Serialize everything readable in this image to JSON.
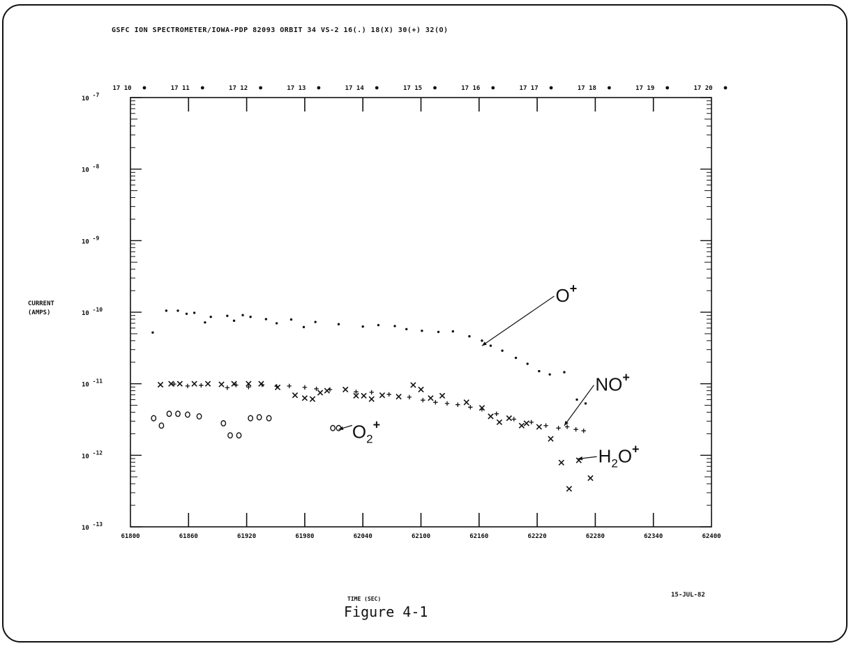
{
  "figure": {
    "header": "GSFC ION SPECTROMETER/IOWA-PDP  82093 ORBIT 34 VS-2  16(.) 18(X) 30(+) 32(O)",
    "ylabel_line1": "CURRENT",
    "ylabel_line2": "(AMPS)",
    "xlabel": "TIME (SEC)",
    "date": "15-JUL-82",
    "caption": "Figure 4-1"
  },
  "chart_data": {
    "type": "scatter",
    "title": "GSFC ION SPECTROMETER/IOWA-PDP  82093 ORBIT 34 VS-2  16(.) 18(X) 30(+) 32(O)",
    "xlabel": "TIME (SEC)",
    "ylabel": "CURRENT (AMPS)",
    "xlim": [
      61800,
      62400
    ],
    "ylim": [
      1e-13,
      1e-07
    ],
    "yscale": "log",
    "x_ticks": [
      61800,
      61860,
      61920,
      61980,
      62040,
      62100,
      62160,
      62220,
      62280,
      62340,
      62400
    ],
    "x_tick_labels": [
      "61800",
      "61860",
      "61920",
      "61980",
      "62040",
      "62100",
      "62160",
      "62220",
      "62280",
      "62340",
      "62400"
    ],
    "y_ticks": [
      1e-13,
      1e-12,
      1e-11,
      1e-10,
      1e-09,
      1e-08,
      1e-07
    ],
    "y_tick_labels": [
      {
        "base": "10",
        "exp": "-13"
      },
      {
        "base": "10",
        "exp": "-12"
      },
      {
        "base": "10",
        "exp": "-11"
      },
      {
        "base": "10",
        "exp": "-10"
      },
      {
        "base": "10",
        "exp": "-9"
      },
      {
        "base": "10",
        "exp": "-8"
      },
      {
        "base": "10",
        "exp": "-7"
      }
    ],
    "top_axis_labels": [
      "17 10",
      "17 11",
      "17 12",
      "17 13",
      "17 14",
      "17 15",
      "17 16",
      "17 17",
      "17 18",
      "17 19",
      "17 20"
    ],
    "grid": false,
    "series": [
      {
        "name": "16(.)",
        "marker": ".",
        "color": "#111111",
        "points": [
          [
            61823,
            5.2e-11
          ],
          [
            61837,
            1.05e-10
          ],
          [
            61849,
            1.05e-10
          ],
          [
            61858,
            9.5e-11
          ],
          [
            61866,
            9.8e-11
          ],
          [
            61877,
            7.2e-11
          ],
          [
            61883,
            8.6e-11
          ],
          [
            61900,
            8.9e-11
          ],
          [
            61907,
            7.6e-11
          ],
          [
            61916,
            9.1e-11
          ],
          [
            61924,
            8.6e-11
          ],
          [
            61940,
            8e-11
          ],
          [
            61951,
            7e-11
          ],
          [
            61966,
            7.9e-11
          ],
          [
            61979,
            6.2e-11
          ],
          [
            61991,
            7.3e-11
          ],
          [
            62015,
            6.8e-11
          ],
          [
            62040,
            6.3e-11
          ],
          [
            62056,
            6.6e-11
          ],
          [
            62073,
            6.4e-11
          ],
          [
            62085,
            5.8e-11
          ],
          [
            62101,
            5.5e-11
          ],
          [
            62118,
            5.3e-11
          ],
          [
            62133,
            5.4e-11
          ],
          [
            62150,
            4.6e-11
          ],
          [
            62163,
            4e-11
          ],
          [
            62172,
            3.4e-11
          ],
          [
            62184,
            2.9e-11
          ],
          [
            62198,
            2.3e-11
          ],
          [
            62210,
            1.9e-11
          ],
          [
            62222,
            1.5e-11
          ],
          [
            62233,
            1.35e-11
          ],
          [
            62248,
            1.45e-11
          ],
          [
            62261,
            6e-12
          ],
          [
            62270,
            5.3e-12
          ]
        ]
      },
      {
        "name": "18(X)",
        "marker": "x",
        "color": "#111111",
        "points": [
          [
            61831,
            9.7e-12
          ],
          [
            61842,
            1e-11
          ],
          [
            61851,
            1e-11
          ],
          [
            61866,
            1e-11
          ],
          [
            61880,
            1e-11
          ],
          [
            61894,
            9.8e-12
          ],
          [
            61907,
            1e-11
          ],
          [
            61922,
            1e-11
          ],
          [
            61935,
            1e-11
          ],
          [
            61952,
            8.9e-12
          ],
          [
            61970,
            6.9e-12
          ],
          [
            61980,
            6.3e-12
          ],
          [
            61988,
            6.1e-12
          ],
          [
            61996,
            7.5e-12
          ],
          [
            62003,
            8e-12
          ],
          [
            62022,
            8.3e-12
          ],
          [
            62033,
            6.8e-12
          ],
          [
            62041,
            6.8e-12
          ],
          [
            62049,
            6.1e-12
          ],
          [
            62060,
            6.9e-12
          ],
          [
            62077,
            6.6e-12
          ],
          [
            62092,
            9.6e-12
          ],
          [
            62100,
            8.3e-12
          ],
          [
            62110,
            6.3e-12
          ],
          [
            62122,
            6.8e-12
          ],
          [
            62147,
            5.5e-12
          ],
          [
            62163,
            4.6e-12
          ],
          [
            62172,
            3.5e-12
          ],
          [
            62181,
            2.9e-12
          ],
          [
            62191,
            3.3e-12
          ],
          [
            62204,
            2.6e-12
          ],
          [
            62209,
            2.8e-12
          ],
          [
            62222,
            2.5e-12
          ],
          [
            62234,
            1.7e-12
          ],
          [
            62245,
            7.9e-13
          ],
          [
            62253,
            3.4e-13
          ],
          [
            62263,
            8.5e-13
          ],
          [
            62275,
            4.8e-13
          ]
        ]
      },
      {
        "name": "30(+)",
        "marker": "+",
        "color": "#111111",
        "points": [
          [
            61845,
            9.9e-12
          ],
          [
            61859,
            9.3e-12
          ],
          [
            61873,
            9.5e-12
          ],
          [
            61900,
            8.8e-12
          ],
          [
            61909,
            9.6e-12
          ],
          [
            61922,
            9e-12
          ],
          [
            61936,
            9.7e-12
          ],
          [
            61951,
            9.2e-12
          ],
          [
            61964,
            9.3e-12
          ],
          [
            61980,
            8.9e-12
          ],
          [
            61992,
            8.5e-12
          ],
          [
            62006,
            8.3e-12
          ],
          [
            62033,
            7.7e-12
          ],
          [
            62049,
            7.6e-12
          ],
          [
            62067,
            7.1e-12
          ],
          [
            62088,
            6.5e-12
          ],
          [
            62102,
            5.9e-12
          ],
          [
            62115,
            5.5e-12
          ],
          [
            62127,
            5.3e-12
          ],
          [
            62138,
            5.1e-12
          ],
          [
            62151,
            4.7e-12
          ],
          [
            62163,
            4.4e-12
          ],
          [
            62178,
            3.8e-12
          ],
          [
            62196,
            3.2e-12
          ],
          [
            62214,
            2.9e-12
          ],
          [
            62229,
            2.6e-12
          ],
          [
            62242,
            2.4e-12
          ],
          [
            62251,
            2.5e-12
          ],
          [
            62260,
            2.3e-12
          ],
          [
            62268,
            2.2e-12
          ]
        ]
      },
      {
        "name": "32(O)",
        "marker": "o",
        "color": "#111111",
        "points": [
          [
            61824,
            3.3e-12
          ],
          [
            61832,
            2.6e-12
          ],
          [
            61840,
            3.8e-12
          ],
          [
            61849,
            3.8e-12
          ],
          [
            61859,
            3.7e-12
          ],
          [
            61871,
            3.5e-12
          ],
          [
            61896,
            2.8e-12
          ],
          [
            61903,
            1.9e-12
          ],
          [
            61912,
            1.9e-12
          ],
          [
            61924,
            3.3e-12
          ],
          [
            61933,
            3.4e-12
          ],
          [
            61943,
            3.3e-12
          ],
          [
            62009,
            2.4e-12
          ],
          [
            62015,
            2.4e-12
          ]
        ]
      }
    ],
    "annotations": [
      {
        "text": "O",
        "sup": "+",
        "x": 62239,
        "y": 1.4e-10,
        "arrow_to": [
          62163,
          3.4e-11
        ]
      },
      {
        "text": "NO",
        "sup": "+",
        "x": 62280,
        "y": 8e-12,
        "arrow_to": [
          62248,
          2.6e-12
        ]
      },
      {
        "text": "H",
        "sub": "2",
        "rest": "O",
        "sup": "+",
        "x": 62283,
        "y": 8e-13,
        "arrow_to": [
          62262,
          8.9e-13
        ]
      },
      {
        "text": "O",
        "sub": "2",
        "sup": "+",
        "x": 62029,
        "y": 1.75e-12,
        "arrow_to": [
          62015,
          2.3e-12
        ]
      }
    ]
  }
}
